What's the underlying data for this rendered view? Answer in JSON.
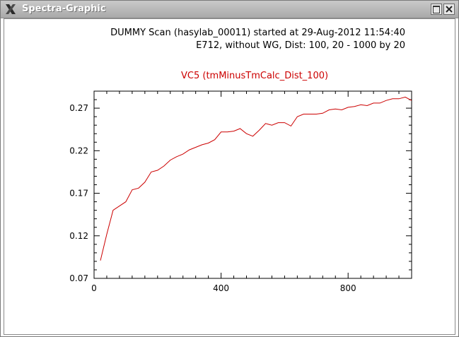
{
  "window": {
    "title": "Spectra-Graphic",
    "controls": [
      "maximize",
      "close"
    ]
  },
  "header": {
    "line1": "DUMMY  Scan (hasylab_00011) started at 29-Aug-2012 11:54:40",
    "line2": "E712, without WG, Dist: 100, 20 - 1000 by 20"
  },
  "colors": {
    "curve": "#cc0000",
    "title": "#cc0000",
    "axes": "#000000"
  },
  "chart_data": {
    "type": "line",
    "title": "VC5 (tmMinusTmCalc_Dist_100)",
    "xlabel": "",
    "ylabel": "",
    "xlim": [
      0,
      1000
    ],
    "ylim": [
      0.07,
      0.29
    ],
    "xticks": [
      "0",
      "400",
      "800"
    ],
    "yticks": [
      "0.07",
      "0.12",
      "0.17",
      "0.22",
      "0.27"
    ],
    "grid": false,
    "series": [
      {
        "x": [
          20,
          40,
          60,
          80,
          100,
          120,
          140,
          160,
          180,
          200,
          220,
          240,
          260,
          280,
          300,
          320,
          340,
          360,
          380,
          400,
          420,
          440,
          460,
          480,
          500,
          520,
          540,
          560,
          580,
          600,
          620,
          640,
          660,
          680,
          700,
          720,
          740,
          760,
          780,
          800,
          820,
          840,
          860,
          880,
          900,
          920,
          940,
          960,
          980,
          1000
        ],
        "y": [
          0.091,
          0.122,
          0.15,
          0.155,
          0.16,
          0.174,
          0.176,
          0.183,
          0.195,
          0.197,
          0.202,
          0.209,
          0.213,
          0.216,
          0.221,
          0.224,
          0.227,
          0.229,
          0.233,
          0.242,
          0.242,
          0.243,
          0.246,
          0.24,
          0.237,
          0.244,
          0.252,
          0.25,
          0.253,
          0.253,
          0.249,
          0.26,
          0.263,
          0.263,
          0.263,
          0.264,
          0.268,
          0.269,
          0.268,
          0.271,
          0.272,
          0.274,
          0.273,
          0.276,
          0.276,
          0.279,
          0.281,
          0.281,
          0.283,
          0.279
        ]
      }
    ]
  }
}
